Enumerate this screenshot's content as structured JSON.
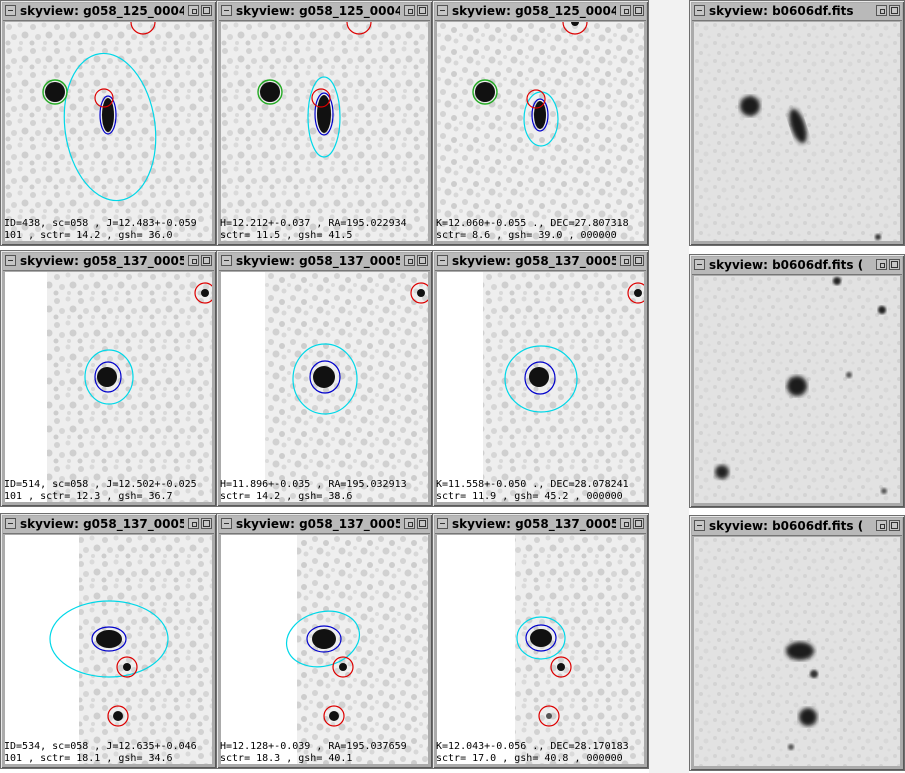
{
  "colors": {
    "window_frame": "#ababab",
    "source_mark": "#0000cc",
    "aperture": "#00d8e8",
    "neighbor": "#dd0000",
    "reference_star": "#22aa22"
  },
  "rows": [
    {
      "panels": [
        {
          "title": "skyview: g058_125_0004",
          "info": [
            "ID=438, sc=058 , J=12.483+-0.059",
            "101 , sctr= 14.2 , gsh= 36.0"
          ]
        },
        {
          "title": "skyview: g058_125_0004",
          "info": [
            "H=12.212+-0.037 , RA=195.022934",
            "sctr= 11.5 , gsh= 41.5"
          ]
        },
        {
          "title": "skyview: g058_125_0004",
          "info": [
            "K=12.060+-0.055 ., DEC=27.807318",
            "sctr= 8.6 , gsh= 39.0 , 000000"
          ]
        }
      ],
      "ref_title": "skyview: b0606df.fits"
    },
    {
      "panels": [
        {
          "title": "skyview: g058_137_0005",
          "info": [
            "ID=514, sc=058 , J=12.502+-0.025",
            "101 , sctr= 12.3 , gsh= 36.7"
          ]
        },
        {
          "title": "skyview: g058_137_0005",
          "info": [
            "H=11.896+-0.035 , RA=195.032913",
            "sctr= 14.2 , gsh= 38.6"
          ]
        },
        {
          "title": "skyview: g058_137_0005",
          "info": [
            "K=11.558+-0.050 ., DEC=28.078241",
            "sctr= 11.9 , gsh= 45.2 , 000000"
          ]
        }
      ],
      "ref_title": "skyview: b0606df.fits  ("
    },
    {
      "panels": [
        {
          "title": "skyview: g058_137_0005",
          "info": [
            "ID=534, sc=058 , J=12.635+-0.046",
            "101 , sctr= 18.1 , gsh= 34.6"
          ]
        },
        {
          "title": "skyview: g058_137_0005",
          "info": [
            "H=12.128+-0.039 , RA=195.037659",
            "sctr= 18.3 , gsh= 40.1"
          ]
        },
        {
          "title": "skyview: g058_137_0005",
          "info": [
            "K=12.043+-0.056 ., DEC=28.170183",
            "sctr= 17.0 , gsh= 40.8 , 000000"
          ]
        }
      ],
      "ref_title": "skyview: b0606df.fits  ("
    }
  ]
}
